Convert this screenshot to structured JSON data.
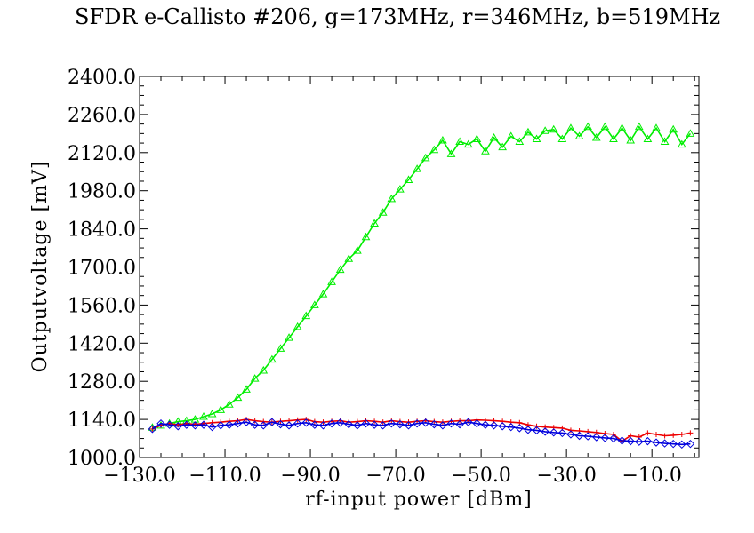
{
  "chart_data": {
    "type": "line",
    "title": "SFDR e-Callisto #206, g=173MHz, r=346MHz, b=519MHz",
    "xlabel": "rf-input power [dBm]",
    "ylabel": "Outputvoltage [mV]",
    "xlim": [
      -130,
      1
    ],
    "ylim": [
      1000,
      2400
    ],
    "x_ticks": [
      -130,
      -110,
      -90,
      -70,
      -50,
      -30,
      -10
    ],
    "x_tick_labels": [
      "−130.0",
      "−110.0",
      "−90.0",
      "−70.0",
      "−50.0",
      "−30.0",
      "−10.0"
    ],
    "y_ticks": [
      1000,
      1140,
      1280,
      1420,
      1560,
      1700,
      1840,
      1980,
      2120,
      2260,
      2400
    ],
    "y_tick_labels": [
      "1000.0",
      "1140.0",
      "1280.0",
      "1420.0",
      "1560.0",
      "1700.0",
      "1840.0",
      "1980.0",
      "2120.0",
      "2260.0",
      "2400.0"
    ],
    "grid": false,
    "x": [
      -127,
      -125,
      -123,
      -121,
      -119,
      -117,
      -115,
      -113,
      -111,
      -109,
      -107,
      -105,
      -103,
      -101,
      -99,
      -97,
      -95,
      -93,
      -91,
      -89,
      -87,
      -85,
      -83,
      -81,
      -79,
      -77,
      -75,
      -73,
      -71,
      -69,
      -67,
      -65,
      -63,
      -61,
      -59,
      -57,
      -55,
      -53,
      -51,
      -49,
      -47,
      -45,
      -43,
      -41,
      -39,
      -37,
      -35,
      -33,
      -31,
      -29,
      -27,
      -25,
      -23,
      -21,
      -19,
      -17,
      -15,
      -13,
      -11,
      -9,
      -7,
      -5,
      -3,
      -1
    ],
    "series": [
      {
        "color": "#00ee00",
        "marker": "triangle",
        "values": [
          1110,
          1118,
          1125,
          1132,
          1135,
          1140,
          1150,
          1160,
          1175,
          1195,
          1220,
          1250,
          1290,
          1320,
          1360,
          1400,
          1440,
          1480,
          1520,
          1560,
          1600,
          1645,
          1690,
          1730,
          1760,
          1810,
          1860,
          1900,
          1950,
          1985,
          2020,
          2060,
          2100,
          2130,
          2165,
          2115,
          2160,
          2150,
          2170,
          2125,
          2175,
          2140,
          2180,
          2160,
          2195,
          2170,
          2200,
          2205,
          2170,
          2210,
          2180,
          2215,
          2175,
          2215,
          2170,
          2210,
          2165,
          2215,
          2170,
          2210,
          2160,
          2205,
          2150,
          2190
        ]
      },
      {
        "color": "#ee0000",
        "marker": "plus",
        "values": [
          1105,
          1118,
          1125,
          1120,
          1125,
          1122,
          1125,
          1128,
          1130,
          1133,
          1135,
          1140,
          1135,
          1132,
          1130,
          1133,
          1135,
          1138,
          1140,
          1132,
          1130,
          1133,
          1135,
          1130,
          1132,
          1135,
          1133,
          1130,
          1135,
          1132,
          1130,
          1133,
          1135,
          1132,
          1130,
          1133,
          1135,
          1135,
          1138,
          1137,
          1135,
          1133,
          1130,
          1128,
          1120,
          1115,
          1112,
          1110,
          1108,
          1100,
          1098,
          1095,
          1092,
          1088,
          1085,
          1060,
          1080,
          1075,
          1090,
          1085,
          1080,
          1082,
          1085,
          1090
        ]
      },
      {
        "color": "#0000dd",
        "marker": "diamond",
        "values": [
          1105,
          1125,
          1120,
          1115,
          1120,
          1118,
          1120,
          1112,
          1118,
          1120,
          1125,
          1130,
          1120,
          1118,
          1130,
          1122,
          1118,
          1125,
          1128,
          1120,
          1118,
          1125,
          1128,
          1122,
          1118,
          1125,
          1120,
          1118,
          1125,
          1122,
          1118,
          1125,
          1128,
          1122,
          1118,
          1125,
          1122,
          1130,
          1125,
          1120,
          1118,
          1115,
          1112,
          1108,
          1102,
          1100,
          1095,
          1092,
          1090,
          1085,
          1080,
          1078,
          1075,
          1072,
          1070,
          1062,
          1060,
          1058,
          1060,
          1055,
          1052,
          1050,
          1048,
          1050
        ]
      }
    ]
  }
}
